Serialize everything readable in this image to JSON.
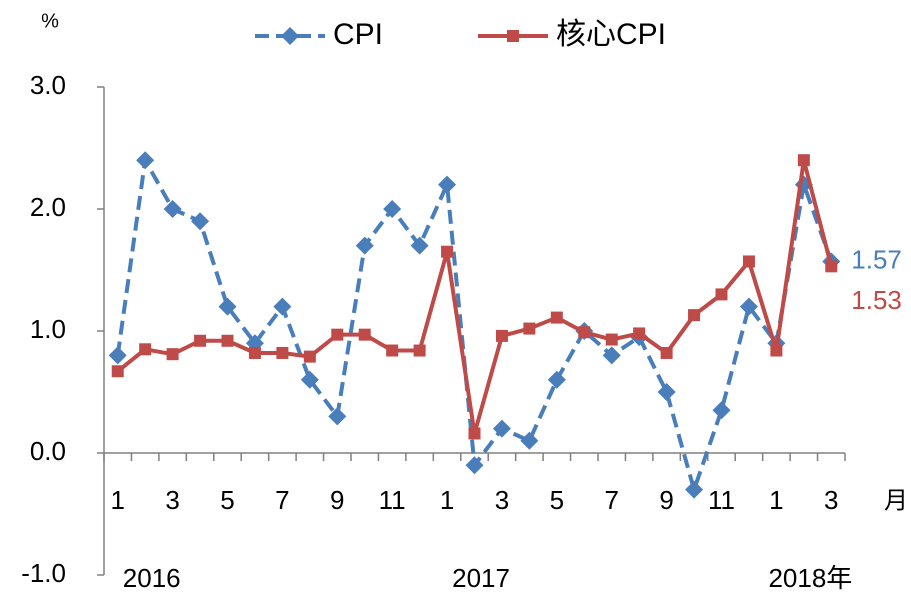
{
  "chart_data": {
    "type": "line",
    "y_label": "%",
    "x_unit": "月",
    "categories": [
      "1",
      null,
      "3",
      null,
      "5",
      null,
      "7",
      null,
      "9",
      null,
      "11",
      null,
      "1",
      null,
      "3",
      null,
      "5",
      null,
      "7",
      null,
      "9",
      null,
      "11",
      null,
      "1",
      null,
      "3"
    ],
    "years": [
      {
        "label": "2016",
        "start": 0
      },
      {
        "label": "2017",
        "start": 12
      },
      {
        "label": "2018年",
        "start": 24
      }
    ],
    "series": [
      {
        "name": "CPI",
        "color": "#4a7ebb",
        "dash": true,
        "marker": "diamond",
        "values": [
          0.8,
          2.4,
          2.0,
          1.9,
          1.2,
          0.9,
          1.2,
          0.6,
          0.3,
          1.7,
          2.0,
          1.7,
          2.2,
          -0.1,
          0.2,
          0.1,
          0.6,
          1.0,
          0.8,
          0.95,
          0.5,
          -0.3,
          0.35,
          1.2,
          0.9,
          2.2,
          1.57
        ]
      },
      {
        "name": "核心CPI",
        "color": "#be4b48",
        "dash": false,
        "marker": "square",
        "values": [
          0.67,
          0.85,
          0.81,
          0.92,
          0.92,
          0.82,
          0.82,
          0.79,
          0.97,
          0.97,
          0.84,
          0.84,
          1.65,
          0.16,
          0.96,
          1.02,
          1.11,
          0.99,
          0.93,
          0.98,
          0.82,
          1.13,
          1.3,
          1.57,
          0.84,
          2.4,
          1.53
        ]
      }
    ],
    "ylim": [
      -1,
      3
    ],
    "yticks": [
      {
        "value": -1,
        "label": "-1.0"
      },
      {
        "value": 0,
        "label": "0.0"
      },
      {
        "value": 1,
        "label": "1.0"
      },
      {
        "value": 2,
        "label": "2.0"
      },
      {
        "value": 3,
        "label": "3.0"
      }
    ],
    "grid": false
  }
}
